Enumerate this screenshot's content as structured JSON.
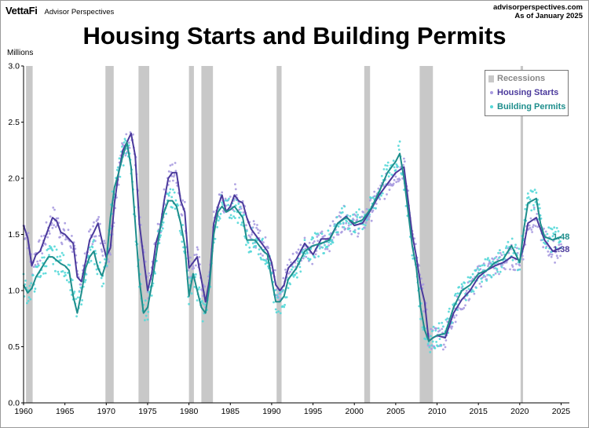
{
  "header": {
    "brand": "VettaFi",
    "brand_sub": "Advisor Perspectives",
    "source_line1": "advisorperspectives.com",
    "source_line2": "As of January 2025"
  },
  "title": "Housing Starts and Building Permits",
  "legend": {
    "recessions": "Recessions",
    "starts": "Housing Starts",
    "permits": "Building Permits"
  },
  "colors": {
    "starts": "#4b3a9c",
    "permits": "#1e8e8c",
    "starts_dots": "#a99be0",
    "permits_dots": "#55d8d8",
    "recession": "#c8c8c8"
  },
  "chart_data": {
    "type": "line",
    "title": "Housing Starts and Building Permits",
    "ylabel": "Millions",
    "xlabel": "",
    "xlim": [
      1960,
      2026
    ],
    "ylim": [
      0,
      3.0
    ],
    "x_ticks": [
      1960,
      1965,
      1970,
      1975,
      1980,
      1985,
      1990,
      1995,
      2000,
      2005,
      2010,
      2015,
      2020,
      2025
    ],
    "y_ticks": [
      "0.0",
      "0.5",
      "1.0",
      "1.5",
      "2.0",
      "2.5",
      "3.0"
    ],
    "recessions": [
      [
        1960.3,
        1961.1
      ],
      [
        1969.9,
        1970.9
      ],
      [
        1973.9,
        1975.2
      ],
      [
        1980.0,
        1980.6
      ],
      [
        1981.5,
        1982.9
      ],
      [
        1990.6,
        1991.2
      ],
      [
        2001.2,
        2001.9
      ],
      [
        2007.9,
        2009.5
      ],
      [
        2020.1,
        2020.4
      ]
    ],
    "series": [
      {
        "name": "Housing Starts",
        "end_label": "1.38",
        "points": [
          [
            1960,
            1.58
          ],
          [
            1960.5,
            1.47
          ],
          [
            1961,
            1.22
          ],
          [
            1961.5,
            1.32
          ],
          [
            1962,
            1.35
          ],
          [
            1962.5,
            1.45
          ],
          [
            1963,
            1.55
          ],
          [
            1963.5,
            1.65
          ],
          [
            1964,
            1.62
          ],
          [
            1964.5,
            1.52
          ],
          [
            1965,
            1.5
          ],
          [
            1965.5,
            1.46
          ],
          [
            1966,
            1.42
          ],
          [
            1966.5,
            1.12
          ],
          [
            1967,
            1.08
          ],
          [
            1967.5,
            1.26
          ],
          [
            1968,
            1.45
          ],
          [
            1968.5,
            1.52
          ],
          [
            1969,
            1.6
          ],
          [
            1969.5,
            1.44
          ],
          [
            1970,
            1.3
          ],
          [
            1970.5,
            1.38
          ],
          [
            1971,
            1.78
          ],
          [
            1971.5,
            2.05
          ],
          [
            1972,
            2.25
          ],
          [
            1972.5,
            2.32
          ],
          [
            1973,
            2.4
          ],
          [
            1973.5,
            2.2
          ],
          [
            1974,
            1.6
          ],
          [
            1974.5,
            1.3
          ],
          [
            1975,
            1.0
          ],
          [
            1975.5,
            1.15
          ],
          [
            1976,
            1.42
          ],
          [
            1976.5,
            1.55
          ],
          [
            1977,
            1.8
          ],
          [
            1977.5,
            2.0
          ],
          [
            1978,
            2.05
          ],
          [
            1978.5,
            2.05
          ],
          [
            1979,
            1.8
          ],
          [
            1979.5,
            1.7
          ],
          [
            1980,
            1.2
          ],
          [
            1980.5,
            1.25
          ],
          [
            1981,
            1.3
          ],
          [
            1981.5,
            1.1
          ],
          [
            1982,
            0.9
          ],
          [
            1982.5,
            1.1
          ],
          [
            1983,
            1.6
          ],
          [
            1983.5,
            1.75
          ],
          [
            1984,
            1.85
          ],
          [
            1984.5,
            1.7
          ],
          [
            1985,
            1.75
          ],
          [
            1985.5,
            1.85
          ],
          [
            1986,
            1.8
          ],
          [
            1986.5,
            1.78
          ],
          [
            1987,
            1.65
          ],
          [
            1987.5,
            1.55
          ],
          [
            1988,
            1.5
          ],
          [
            1988.5,
            1.45
          ],
          [
            1989,
            1.4
          ],
          [
            1989.5,
            1.35
          ],
          [
            1990,
            1.25
          ],
          [
            1990.5,
            1.05
          ],
          [
            1991,
            1.0
          ],
          [
            1991.5,
            1.05
          ],
          [
            1992,
            1.2
          ],
          [
            1993,
            1.28
          ],
          [
            1994,
            1.42
          ],
          [
            1995,
            1.32
          ],
          [
            1996,
            1.46
          ],
          [
            1997,
            1.46
          ],
          [
            1998,
            1.6
          ],
          [
            1999,
            1.66
          ],
          [
            2000,
            1.58
          ],
          [
            2001,
            1.6
          ],
          [
            2002,
            1.72
          ],
          [
            2003,
            1.85
          ],
          [
            2004,
            1.95
          ],
          [
            2005,
            2.05
          ],
          [
            2006,
            2.1
          ],
          [
            2006.5,
            1.8
          ],
          [
            2007,
            1.5
          ],
          [
            2007.5,
            1.3
          ],
          [
            2008,
            1.05
          ],
          [
            2008.5,
            0.9
          ],
          [
            2009,
            0.55
          ],
          [
            2009.5,
            0.58
          ],
          [
            2010,
            0.6
          ],
          [
            2011,
            0.58
          ],
          [
            2012,
            0.8
          ],
          [
            2013,
            0.92
          ],
          [
            2014,
            1.0
          ],
          [
            2015,
            1.12
          ],
          [
            2016,
            1.18
          ],
          [
            2017,
            1.22
          ],
          [
            2018,
            1.25
          ],
          [
            2019,
            1.3
          ],
          [
            2020,
            1.27
          ],
          [
            2020.5,
            1.4
          ],
          [
            2021,
            1.6
          ],
          [
            2022,
            1.65
          ],
          [
            2022.5,
            1.55
          ],
          [
            2023,
            1.45
          ],
          [
            2024,
            1.35
          ],
          [
            2025,
            1.38
          ]
        ]
      },
      {
        "name": "Building Permits",
        "end_label": "1.48",
        "points": [
          [
            1960,
            1.05
          ],
          [
            1960.5,
            0.98
          ],
          [
            1961,
            1.02
          ],
          [
            1961.5,
            1.12
          ],
          [
            1962,
            1.18
          ],
          [
            1963,
            1.3
          ],
          [
            1963.5,
            1.3
          ],
          [
            1964,
            1.27
          ],
          [
            1964.5,
            1.24
          ],
          [
            1965,
            1.22
          ],
          [
            1965.5,
            1.18
          ],
          [
            1966,
            0.95
          ],
          [
            1966.5,
            0.8
          ],
          [
            1967,
            0.98
          ],
          [
            1967.5,
            1.2
          ],
          [
            1968,
            1.3
          ],
          [
            1968.5,
            1.35
          ],
          [
            1969,
            1.2
          ],
          [
            1969.5,
            1.13
          ],
          [
            1970,
            1.25
          ],
          [
            1970.5,
            1.65
          ],
          [
            1971,
            1.92
          ],
          [
            1971.5,
            2.05
          ],
          [
            1972,
            2.2
          ],
          [
            1972.5,
            2.32
          ],
          [
            1973,
            2.1
          ],
          [
            1973.5,
            1.6
          ],
          [
            1974,
            1.1
          ],
          [
            1974.5,
            0.8
          ],
          [
            1975,
            0.85
          ],
          [
            1975.5,
            1.05
          ],
          [
            1976,
            1.3
          ],
          [
            1976.5,
            1.55
          ],
          [
            1977,
            1.7
          ],
          [
            1977.5,
            1.8
          ],
          [
            1978,
            1.8
          ],
          [
            1978.5,
            1.75
          ],
          [
            1979,
            1.6
          ],
          [
            1979.5,
            1.4
          ],
          [
            1980,
            0.95
          ],
          [
            1980.5,
            1.15
          ],
          [
            1981,
            1.0
          ],
          [
            1981.5,
            0.85
          ],
          [
            1982,
            0.8
          ],
          [
            1982.5,
            1.05
          ],
          [
            1983,
            1.5
          ],
          [
            1983.5,
            1.7
          ],
          [
            1984,
            1.75
          ],
          [
            1984.5,
            1.7
          ],
          [
            1985,
            1.72
          ],
          [
            1985.5,
            1.75
          ],
          [
            1986,
            1.7
          ],
          [
            1986.5,
            1.65
          ],
          [
            1987,
            1.45
          ],
          [
            1987.5,
            1.45
          ],
          [
            1988,
            1.45
          ],
          [
            1988.5,
            1.4
          ],
          [
            1989,
            1.35
          ],
          [
            1989.5,
            1.32
          ],
          [
            1990,
            1.1
          ],
          [
            1990.5,
            0.9
          ],
          [
            1991,
            0.9
          ],
          [
            1991.5,
            0.95
          ],
          [
            1992,
            1.1
          ],
          [
            1993,
            1.2
          ],
          [
            1994,
            1.35
          ],
          [
            1995,
            1.4
          ],
          [
            1996,
            1.42
          ],
          [
            1997,
            1.45
          ],
          [
            1998,
            1.6
          ],
          [
            1999,
            1.65
          ],
          [
            2000,
            1.6
          ],
          [
            2001,
            1.63
          ],
          [
            2002,
            1.73
          ],
          [
            2003,
            1.88
          ],
          [
            2004,
            2.05
          ],
          [
            2005,
            2.15
          ],
          [
            2005.5,
            2.22
          ],
          [
            2006,
            2.0
          ],
          [
            2006.5,
            1.7
          ],
          [
            2007,
            1.4
          ],
          [
            2007.5,
            1.2
          ],
          [
            2008,
            0.85
          ],
          [
            2008.5,
            0.65
          ],
          [
            2009,
            0.55
          ],
          [
            2009.5,
            0.58
          ],
          [
            2010,
            0.6
          ],
          [
            2011,
            0.62
          ],
          [
            2012,
            0.85
          ],
          [
            2013,
            1.0
          ],
          [
            2014,
            1.05
          ],
          [
            2015,
            1.15
          ],
          [
            2016,
            1.18
          ],
          [
            2017,
            1.25
          ],
          [
            2018,
            1.28
          ],
          [
            2019,
            1.4
          ],
          [
            2020,
            1.25
          ],
          [
            2020.5,
            1.55
          ],
          [
            2021,
            1.78
          ],
          [
            2022,
            1.82
          ],
          [
            2022.5,
            1.6
          ],
          [
            2023,
            1.48
          ],
          [
            2024,
            1.45
          ],
          [
            2025,
            1.48
          ]
        ]
      }
    ]
  }
}
